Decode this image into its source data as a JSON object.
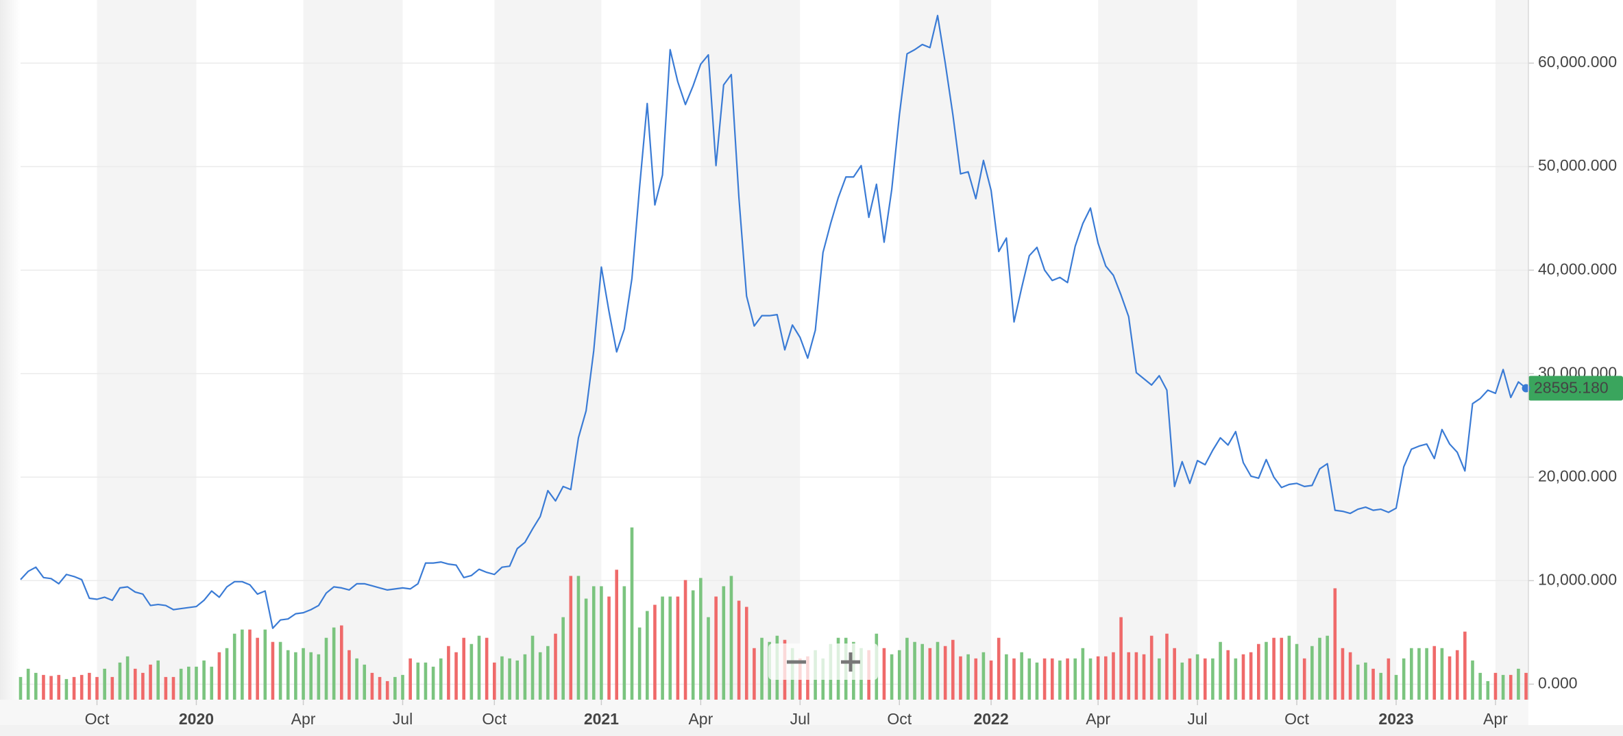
{
  "chart_data": {
    "type": "line",
    "categories": [
      null,
      null,
      null,
      null,
      null,
      null,
      null,
      null,
      null,
      null,
      "Oct",
      null,
      null,
      null,
      null,
      null,
      null,
      null,
      null,
      null,
      null,
      null,
      null,
      "2020",
      null,
      null,
      null,
      null,
      null,
      null,
      null,
      null,
      null,
      null,
      null,
      null,
      null,
      "Apr",
      null,
      null,
      null,
      null,
      null,
      null,
      null,
      null,
      null,
      null,
      null,
      null,
      "Jul",
      null,
      null,
      null,
      null,
      null,
      null,
      null,
      null,
      null,
      null,
      null,
      "Oct",
      null,
      null,
      null,
      null,
      null,
      null,
      null,
      null,
      null,
      null,
      null,
      null,
      null,
      "2021",
      null,
      null,
      null,
      null,
      null,
      null,
      null,
      null,
      null,
      null,
      null,
      null,
      "Apr",
      null,
      null,
      null,
      null,
      null,
      null,
      null,
      null,
      null,
      null,
      null,
      null,
      "Jul",
      null,
      null,
      null,
      null,
      null,
      null,
      null,
      null,
      null,
      null,
      null,
      null,
      "Oct",
      null,
      null,
      null,
      null,
      null,
      null,
      null,
      null,
      null,
      null,
      null,
      "2022",
      null,
      null,
      null,
      null,
      null,
      null,
      null,
      null,
      null,
      null,
      null,
      null,
      null,
      "Apr",
      null,
      null,
      null,
      null,
      null,
      null,
      null,
      null,
      null,
      null,
      null,
      null,
      "Jul",
      null,
      null,
      null,
      null,
      null,
      null,
      null,
      null,
      null,
      null,
      null,
      null,
      "Oct",
      null,
      null,
      null,
      null,
      null,
      null,
      null,
      null,
      null,
      null,
      null,
      null,
      "2023",
      null,
      null,
      null,
      null,
      null,
      null,
      null,
      null,
      null,
      null,
      null,
      null,
      "Apr",
      null,
      null,
      null,
      null
    ],
    "series": [
      {
        "color": "#3a7bd5",
        "last_label": "28595.180",
        "label_color": "#3aa55d",
        "values": [
          10100,
          10900,
          11300,
          10300,
          10200,
          9700,
          10600,
          10400,
          10100,
          8300,
          8200,
          8400,
          8100,
          9300,
          9400,
          8900,
          8700,
          7600,
          7700,
          7600,
          7200,
          7300,
          7400,
          7500,
          8100,
          9000,
          8400,
          9400,
          9900,
          9900,
          9600,
          8700,
          9000,
          5400,
          6200,
          6300,
          6800,
          6900,
          7200,
          7600,
          8800,
          9400,
          9300,
          9100,
          9700,
          9700,
          9500,
          9300,
          9100,
          9200,
          9300,
          9200,
          9700,
          11700,
          11700,
          11800,
          11600,
          11500,
          10300,
          10500,
          11100,
          10800,
          10600,
          11300,
          11400,
          13100,
          13700,
          15000,
          16200,
          18700,
          17700,
          19100,
          18800,
          23800,
          26400,
          32200,
          40300,
          36000,
          32100,
          34300,
          39200,
          48000,
          56100,
          46300,
          49200,
          61300,
          58200,
          56000,
          57800,
          59900,
          60800,
          50100,
          57900,
          58900,
          47000,
          37500,
          34600,
          35600,
          35600,
          35700,
          32300,
          34700,
          33500,
          31500,
          34200,
          41700,
          44500,
          47000,
          49000,
          49000,
          50100,
          45100,
          48300,
          42700,
          47800,
          55000,
          60900,
          61300,
          61800,
          61500,
          64600,
          60000,
          55000,
          49300,
          49500,
          46900,
          50600,
          47700,
          41800,
          43100,
          35000,
          38300,
          41400,
          42200,
          40000,
          39000,
          39300,
          38800,
          42300,
          44500,
          46000,
          42600,
          40400,
          39500,
          37600,
          35500,
          30100,
          29500,
          28900,
          29800,
          28400,
          19100,
          21500,
          19400,
          21600,
          21200,
          22600,
          23800,
          23100,
          24400,
          21400,
          20100,
          19900,
          21700,
          20000,
          19000,
          19300,
          19400,
          19100,
          19200,
          20800,
          21300,
          16800,
          16700,
          16500,
          16900,
          17100,
          16800,
          16900,
          16600,
          17000,
          21000,
          22700,
          23000,
          23200,
          21800,
          24600,
          23200,
          22400,
          20600,
          27100,
          27600,
          28400,
          28100,
          30400,
          27700,
          29200,
          28595.18
        ]
      },
      {
        "type": "bar",
        "axis": "y2",
        "up_color": "#7bc47f",
        "down_color": "#ef6a6a",
        "values": [
          22,
          30,
          26,
          24,
          23,
          24,
          20,
          22,
          24,
          26,
          22,
          30,
          22,
          36,
          42,
          30,
          26,
          34,
          38,
          22,
          22,
          30,
          32,
          32,
          38,
          32,
          46,
          50,
          64,
          68,
          68,
          60,
          68,
          56,
          56,
          48,
          46,
          50,
          46,
          44,
          60,
          70,
          72,
          48,
          40,
          34,
          26,
          22,
          18,
          22,
          24,
          40,
          36,
          36,
          32,
          40,
          52,
          46,
          60,
          54,
          62,
          60,
          36,
          42,
          40,
          38,
          44,
          62,
          46,
          52,
          64,
          80,
          120,
          120,
          98,
          110,
          110,
          100,
          126,
          110,
          167,
          70,
          86,
          92,
          100,
          100,
          100,
          116,
          106,
          118,
          80,
          100,
          110,
          120,
          96,
          90,
          50,
          60,
          56,
          62,
          58,
          50,
          40,
          42,
          48,
          40,
          54,
          60,
          60,
          56,
          50,
          48,
          64,
          50,
          44,
          48,
          60,
          56,
          54,
          50,
          56,
          52,
          58,
          42,
          44,
          40,
          46,
          38,
          60,
          44,
          40,
          46,
          40,
          36,
          40,
          40,
          38,
          40,
          40,
          50,
          40,
          42,
          42,
          46,
          80,
          46,
          46,
          44,
          62,
          40,
          64,
          50,
          36,
          40,
          44,
          40,
          40,
          56,
          48,
          40,
          44,
          46,
          54,
          56,
          60,
          60,
          62,
          54,
          40,
          52,
          60,
          62,
          108,
          50,
          46,
          34,
          36,
          30,
          26,
          40,
          24,
          40,
          50,
          50,
          50,
          52,
          50,
          42,
          48,
          66,
          38,
          26,
          18,
          26,
          24,
          24,
          30,
          26
        ]
      }
    ],
    "ylim": [
      -1500,
      66100
    ],
    "yticks": [
      {
        "value": 0,
        "label": "0.000"
      },
      {
        "value": 10000,
        "label": "10,000.000"
      },
      {
        "value": 20000,
        "label": "20,000.000"
      },
      {
        "value": 30000,
        "label": "30,000.000"
      },
      {
        "value": 40000,
        "label": "40,000.000"
      },
      {
        "value": 50000,
        "label": "50,000.000"
      },
      {
        "value": 60000,
        "label": "60,000.000"
      }
    ],
    "y2lim": [
      0,
      200
    ],
    "grid": true
  }
}
